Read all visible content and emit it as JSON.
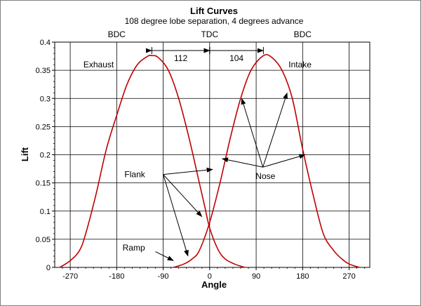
{
  "chart_data": {
    "type": "line",
    "title": "Lift Curves",
    "subtitle": "108 degree lobe separation, 4 degrees advance",
    "xlabel": "Angle",
    "ylabel": "Lift",
    "xlim": [
      -300,
      310
    ],
    "ylim": [
      0,
      0.4
    ],
    "xticks": [
      -270,
      -180,
      -90,
      0,
      90,
      180,
      270
    ],
    "xtick_labels": [
      "-270",
      "-180",
      "-90",
      "0",
      "90",
      "180",
      "270"
    ],
    "yticks": [
      0,
      0.05,
      0.1,
      0.15,
      0.2,
      0.25,
      0.3,
      0.35,
      0.4
    ],
    "ytick_labels": [
      "0",
      "0.05",
      "0.1",
      "0.15",
      "0.2",
      "0.25",
      "0.3",
      "0.35",
      "0.4"
    ],
    "grid": true,
    "line_color": "#c00000",
    "series": [
      {
        "lobe": "exhaust",
        "x": [
          -290,
          -270,
          -252,
          -240,
          -220,
          -200,
          -180,
          -160,
          -140,
          -120,
          -112,
          -100,
          -80,
          -60,
          -40,
          -20,
          -10,
          0,
          16,
          30,
          48,
          68
        ],
        "y": [
          0,
          0.012,
          0.03,
          0.06,
          0.13,
          0.21,
          0.27,
          0.325,
          0.36,
          0.375,
          0.376,
          0.373,
          0.35,
          0.3,
          0.23,
          0.15,
          0.11,
          0.07,
          0.032,
          0.015,
          0.006,
          0
        ]
      },
      {
        "lobe": "intake",
        "x": [
          -70,
          -50,
          -34,
          -20,
          0,
          20,
          40,
          60,
          80,
          104,
          120,
          140,
          160,
          180,
          200,
          220,
          240,
          256,
          270,
          290
        ],
        "y": [
          0,
          0.006,
          0.015,
          0.03,
          0.08,
          0.15,
          0.23,
          0.3,
          0.35,
          0.376,
          0.373,
          0.35,
          0.3,
          0.21,
          0.13,
          0.06,
          0.03,
          0.015,
          0.006,
          0
        ]
      }
    ],
    "markers": [
      {
        "text": "BDC",
        "x": -180
      },
      {
        "text": "TDC",
        "x": 0
      },
      {
        "text": "BDC",
        "x": 180
      }
    ],
    "dimensions": [
      {
        "text": "112",
        "x1": -112,
        "x2": 0,
        "y": 0.385
      },
      {
        "text": "104",
        "x1": 0,
        "x2": 104,
        "y": 0.385
      }
    ],
    "labels": [
      {
        "text": "Exhaust",
        "x": -215,
        "y": 0.36
      },
      {
        "text": "Intake",
        "x": 175,
        "y": 0.36
      }
    ],
    "annotations": [
      {
        "text": "Flank",
        "x": -145,
        "y": 0.165,
        "tail": [
          -90,
          0.165
        ],
        "targets": [
          [
            6,
            0.174
          ],
          [
            -15,
            0.09
          ],
          [
            -42,
            0.02
          ]
        ]
      },
      {
        "text": "Nose",
        "x": 108,
        "y": 0.162,
        "tail": [
          103,
          0.178
        ],
        "targets": [
          [
            62,
            0.3
          ],
          [
            150,
            0.31
          ],
          [
            185,
            0.2
          ],
          [
            24,
            0.193
          ]
        ]
      },
      {
        "text": "Ramp",
        "x": -147,
        "y": 0.035,
        "tail": [
          -105,
          0.028
        ],
        "targets": [
          [
            -70,
            0.012
          ]
        ]
      }
    ]
  }
}
